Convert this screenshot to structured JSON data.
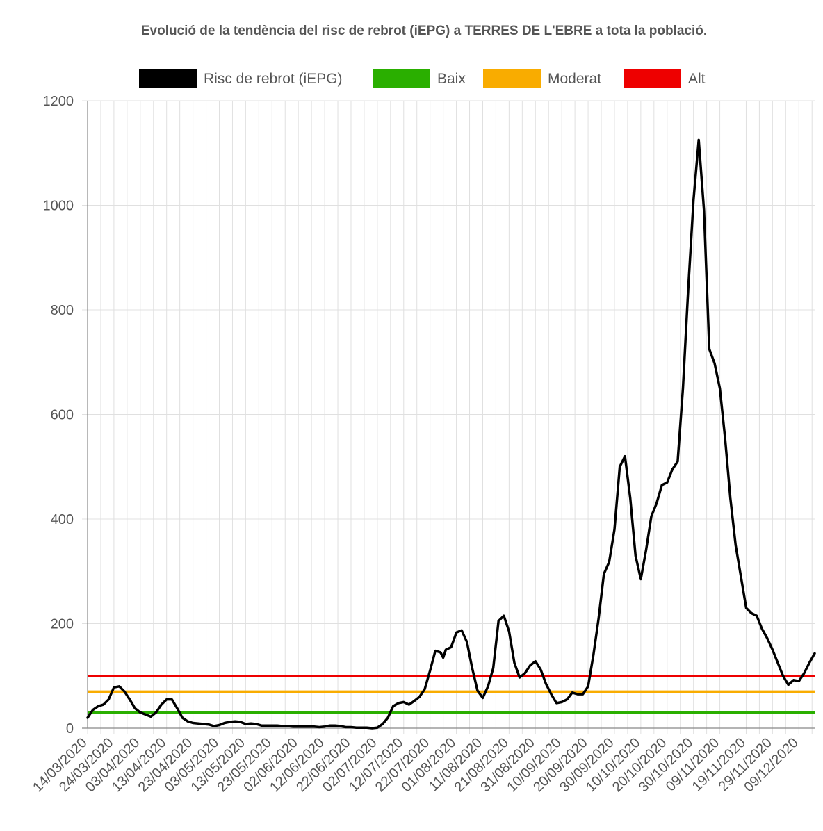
{
  "chart_data": {
    "type": "line",
    "title": "Evolució de la tendència del risc de rebrot (iEPG) a TERRES DE L'EBRE a tota la població.",
    "xlabel": "",
    "ylabel": "",
    "ylim": [
      0,
      1200
    ],
    "yticks": [
      "0",
      "200",
      "400",
      "600",
      "800",
      "1000",
      "1200"
    ],
    "x_tick_labels": [
      "14/03/2020",
      "24/03/2020",
      "03/04/2020",
      "13/04/2020",
      "23/04/2020",
      "03/05/2020",
      "13/05/2020",
      "23/05/2020",
      "02/06/2020",
      "12/06/2020",
      "22/06/2020",
      "02/07/2020",
      "12/07/2020",
      "22/07/2020",
      "01/08/2020",
      "11/08/2020",
      "21/08/2020",
      "31/08/2020",
      "10/09/2020",
      "20/09/2020",
      "30/09/2020",
      "10/10/2020",
      "20/10/2020",
      "30/10/2020",
      "09/11/2020",
      "19/11/2020",
      "29/11/2020",
      "09/12/2020"
    ],
    "grid": true,
    "legend_position": "top",
    "x_range": [
      "14/03/2020",
      "15/12/2020"
    ],
    "series": [
      {
        "name": "Risc de rebrot (iEPG)",
        "color": "#000000",
        "points": [
          [
            "14/03/2020",
            20
          ],
          [
            "16/03/2020",
            35
          ],
          [
            "18/03/2020",
            42
          ],
          [
            "20/03/2020",
            45
          ],
          [
            "22/03/2020",
            55
          ],
          [
            "24/03/2020",
            78
          ],
          [
            "26/03/2020",
            80
          ],
          [
            "28/03/2020",
            70
          ],
          [
            "30/03/2020",
            55
          ],
          [
            "01/04/2020",
            38
          ],
          [
            "03/04/2020",
            30
          ],
          [
            "05/04/2020",
            26
          ],
          [
            "07/04/2020",
            22
          ],
          [
            "09/04/2020",
            30
          ],
          [
            "11/04/2020",
            45
          ],
          [
            "13/04/2020",
            55
          ],
          [
            "15/04/2020",
            55
          ],
          [
            "17/04/2020",
            38
          ],
          [
            "19/04/2020",
            20
          ],
          [
            "21/04/2020",
            13
          ],
          [
            "23/04/2020",
            10
          ],
          [
            "25/04/2020",
            9
          ],
          [
            "27/04/2020",
            8
          ],
          [
            "29/04/2020",
            7
          ],
          [
            "01/05/2020",
            4
          ],
          [
            "03/05/2020",
            6
          ],
          [
            "05/05/2020",
            10
          ],
          [
            "07/05/2020",
            12
          ],
          [
            "09/05/2020",
            13
          ],
          [
            "11/05/2020",
            12
          ],
          [
            "13/05/2020",
            8
          ],
          [
            "15/05/2020",
            9
          ],
          [
            "17/05/2020",
            8
          ],
          [
            "19/05/2020",
            5
          ],
          [
            "21/05/2020",
            5
          ],
          [
            "23/05/2020",
            5
          ],
          [
            "25/05/2020",
            5
          ],
          [
            "27/05/2020",
            4
          ],
          [
            "29/05/2020",
            4
          ],
          [
            "31/05/2020",
            3
          ],
          [
            "02/06/2020",
            3
          ],
          [
            "04/06/2020",
            3
          ],
          [
            "06/06/2020",
            3
          ],
          [
            "08/06/2020",
            3
          ],
          [
            "10/06/2020",
            2
          ],
          [
            "12/06/2020",
            3
          ],
          [
            "14/06/2020",
            5
          ],
          [
            "16/06/2020",
            5
          ],
          [
            "18/06/2020",
            4
          ],
          [
            "20/06/2020",
            2
          ],
          [
            "22/06/2020",
            2
          ],
          [
            "24/06/2020",
            1
          ],
          [
            "26/06/2020",
            1
          ],
          [
            "28/06/2020",
            1
          ],
          [
            "30/06/2020",
            0
          ],
          [
            "02/07/2020",
            1
          ],
          [
            "04/07/2020",
            8
          ],
          [
            "06/07/2020",
            20
          ],
          [
            "08/07/2020",
            42
          ],
          [
            "10/07/2020",
            48
          ],
          [
            "12/07/2020",
            50
          ],
          [
            "14/07/2020",
            45
          ],
          [
            "16/07/2020",
            52
          ],
          [
            "18/07/2020",
            60
          ],
          [
            "20/07/2020",
            75
          ],
          [
            "22/07/2020",
            110
          ],
          [
            "24/07/2020",
            148
          ],
          [
            "26/07/2020",
            145
          ],
          [
            "27/07/2020",
            135
          ],
          [
            "28/07/2020",
            150
          ],
          [
            "30/07/2020",
            155
          ],
          [
            "01/08/2020",
            183
          ],
          [
            "03/08/2020",
            187
          ],
          [
            "05/08/2020",
            165
          ],
          [
            "07/08/2020",
            115
          ],
          [
            "09/08/2020",
            72
          ],
          [
            "11/08/2020",
            58
          ],
          [
            "13/08/2020",
            80
          ],
          [
            "15/08/2020",
            115
          ],
          [
            "17/08/2020",
            205
          ],
          [
            "19/08/2020",
            215
          ],
          [
            "21/08/2020",
            185
          ],
          [
            "23/08/2020",
            125
          ],
          [
            "25/08/2020",
            97
          ],
          [
            "27/08/2020",
            105
          ],
          [
            "29/08/2020",
            120
          ],
          [
            "31/08/2020",
            128
          ],
          [
            "02/09/2020",
            112
          ],
          [
            "04/09/2020",
            85
          ],
          [
            "06/09/2020",
            65
          ],
          [
            "08/09/2020",
            48
          ],
          [
            "10/09/2020",
            50
          ],
          [
            "12/09/2020",
            55
          ],
          [
            "14/09/2020",
            68
          ],
          [
            "16/09/2020",
            65
          ],
          [
            "18/09/2020",
            65
          ],
          [
            "20/09/2020",
            80
          ],
          [
            "22/09/2020",
            140
          ],
          [
            "24/09/2020",
            210
          ],
          [
            "26/09/2020",
            295
          ],
          [
            "28/09/2020",
            318
          ],
          [
            "30/09/2020",
            380
          ],
          [
            "02/10/2020",
            500
          ],
          [
            "04/10/2020",
            520
          ],
          [
            "06/10/2020",
            440
          ],
          [
            "08/10/2020",
            330
          ],
          [
            "10/10/2020",
            285
          ],
          [
            "12/10/2020",
            340
          ],
          [
            "14/10/2020",
            405
          ],
          [
            "16/10/2020",
            430
          ],
          [
            "18/10/2020",
            465
          ],
          [
            "20/10/2020",
            470
          ],
          [
            "22/10/2020",
            495
          ],
          [
            "24/10/2020",
            510
          ],
          [
            "26/10/2020",
            650
          ],
          [
            "28/10/2020",
            840
          ],
          [
            "30/10/2020",
            1010
          ],
          [
            "01/11/2020",
            1125
          ],
          [
            "03/11/2020",
            990
          ],
          [
            "05/11/2020",
            725
          ],
          [
            "07/11/2020",
            698
          ],
          [
            "09/11/2020",
            650
          ],
          [
            "11/11/2020",
            555
          ],
          [
            "13/11/2020",
            440
          ],
          [
            "15/11/2020",
            350
          ],
          [
            "17/11/2020",
            290
          ],
          [
            "19/11/2020",
            230
          ],
          [
            "21/11/2020",
            220
          ],
          [
            "23/11/2020",
            215
          ],
          [
            "25/11/2020",
            190
          ],
          [
            "27/11/2020",
            172
          ],
          [
            "29/11/2020",
            150
          ],
          [
            "01/12/2020",
            125
          ],
          [
            "03/12/2020",
            100
          ],
          [
            "05/12/2020",
            83
          ],
          [
            "07/12/2020",
            92
          ],
          [
            "09/12/2020",
            90
          ],
          [
            "11/12/2020",
            105
          ],
          [
            "13/12/2020",
            125
          ],
          [
            "15/12/2020",
            143
          ]
        ]
      },
      {
        "name": "Baix",
        "color": "#2aaf00",
        "value": 30
      },
      {
        "name": "Moderat",
        "color": "#f9ac00",
        "value": 70
      },
      {
        "name": "Alt",
        "color": "#ee0000",
        "value": 100
      }
    ]
  }
}
